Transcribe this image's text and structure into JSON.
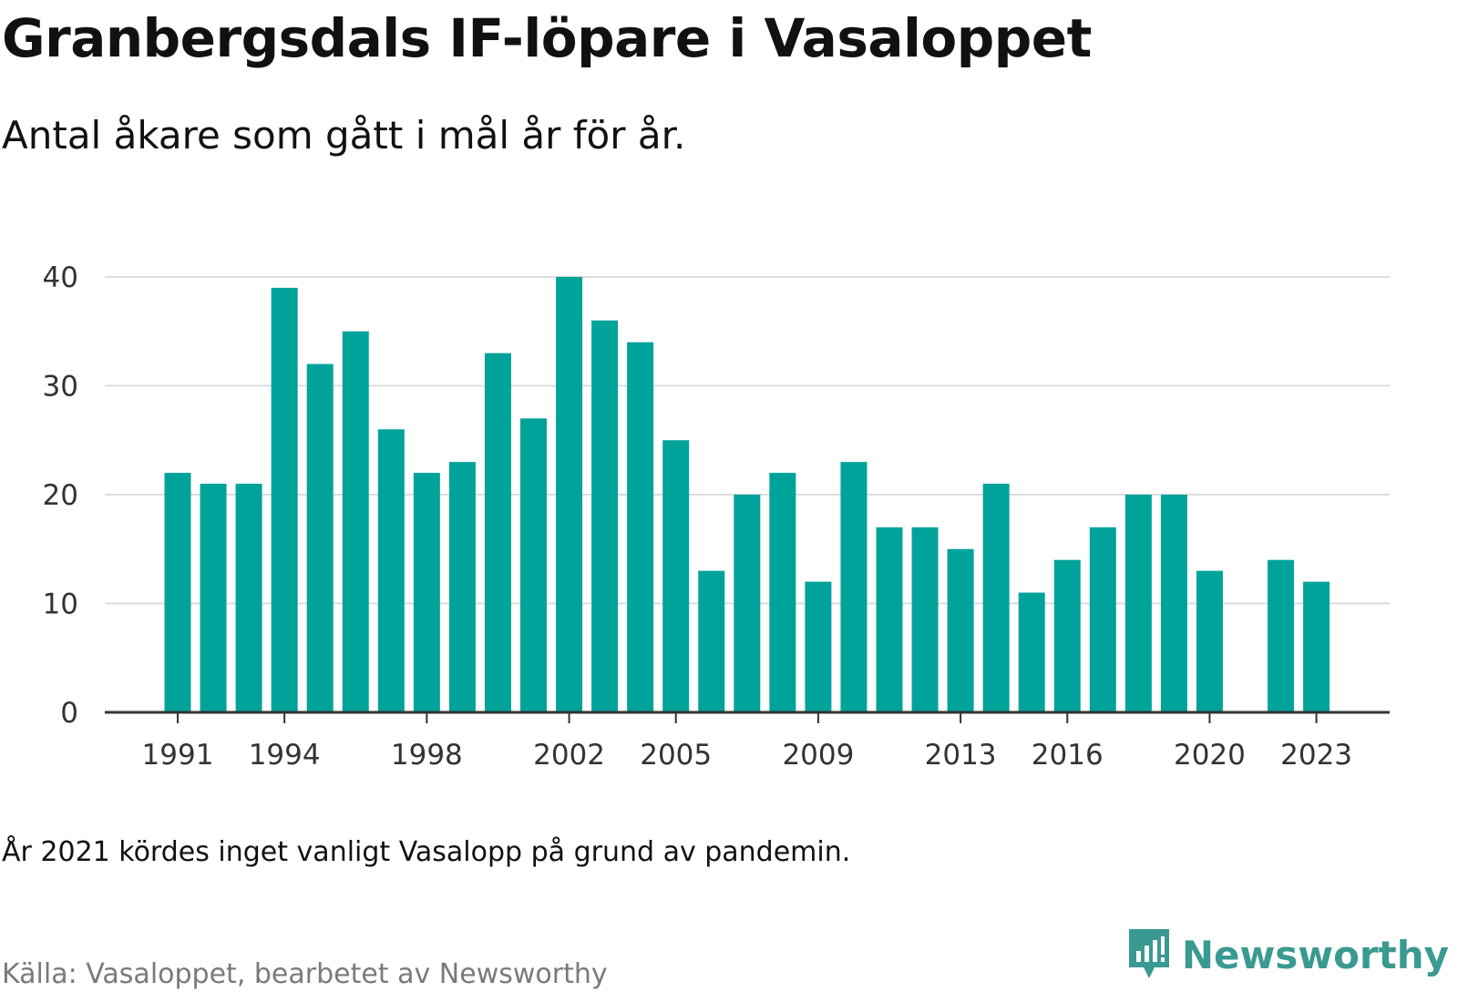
{
  "title": "Granbergsdals IF-löpare i Vasaloppet",
  "subtitle": "Antal åkare som gått i mål år för år.",
  "note": "År 2021 kördes inget vanligt Vasalopp på grund av pandemin.",
  "source": "Källa: Vasaloppet, bearbetet av Newsworthy",
  "brand": {
    "name": "Newsworthy",
    "icon": "newsworthy-logo-icon",
    "color": "#3a9a91"
  },
  "colors": {
    "bar": "#00a39a",
    "grid": "#dddddd",
    "axis": "#333333"
  },
  "chart_data": {
    "type": "bar",
    "title": "",
    "xlabel": "",
    "ylabel": "",
    "ylim": [
      0,
      40
    ],
    "grid": true,
    "yticks": [
      0,
      10,
      20,
      30,
      40
    ],
    "xticks": [
      1991,
      1994,
      1998,
      2002,
      2005,
      2009,
      2013,
      2016,
      2020,
      2023
    ],
    "categories": [
      1991,
      1992,
      1993,
      1994,
      1995,
      1996,
      1997,
      1998,
      1999,
      2000,
      2001,
      2002,
      2003,
      2004,
      2005,
      2006,
      2007,
      2008,
      2009,
      2010,
      2011,
      2012,
      2013,
      2014,
      2015,
      2016,
      2017,
      2018,
      2019,
      2020,
      2021,
      2022,
      2023
    ],
    "values": [
      22,
      21,
      21,
      39,
      32,
      35,
      26,
      22,
      23,
      33,
      27,
      40,
      36,
      34,
      25,
      13,
      20,
      22,
      12,
      23,
      17,
      17,
      15,
      21,
      11,
      14,
      17,
      20,
      20,
      13,
      null,
      14,
      12
    ]
  }
}
